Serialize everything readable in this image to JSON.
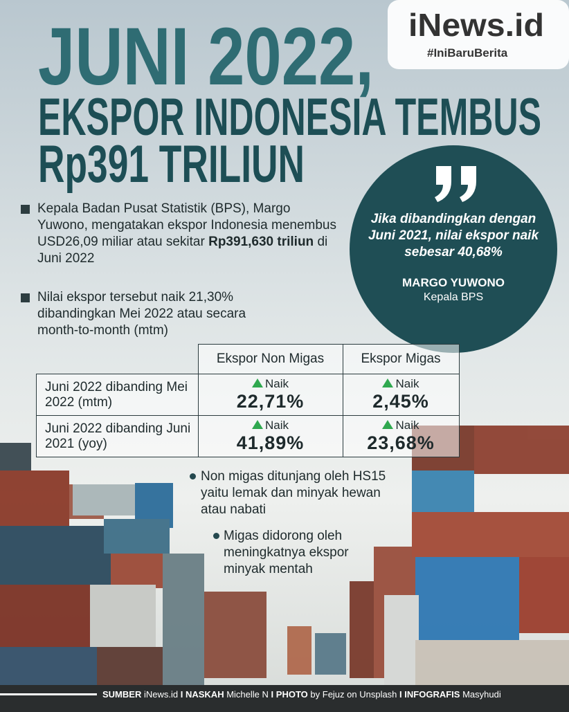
{
  "logo": {
    "name": "iNews.id",
    "tagline": "#IniBaruBerita"
  },
  "title": {
    "line1": "JUNI 2022,",
    "line2": "EKSPOR INDONESIA TEMBUS",
    "line3": "Rp391 TRILIUN"
  },
  "bullets": [
    {
      "text": "Kepala Badan Pusat Statistik (BPS), Margo Yuwono, mengatakan ekspor Indonesia menembus USD26,09 miliar atau sekitar",
      "bold": "Rp391,630 triliun",
      "after": "di Juni 2022"
    },
    {
      "text": "Nilai ekspor tersebut naik 21,30% dibandingkan Mei 2022 atau secara month-to-month (mtm)"
    }
  ],
  "quote": {
    "text": "Jika dibandingkan dengan Juni 2021, nilai ekspor naik sebesar 40,68%",
    "name": "MARGO YUWONO",
    "role": "Kepala BPS"
  },
  "table": {
    "headers": [
      "Ekspor Non Migas",
      "Ekspor Migas"
    ],
    "rows": [
      {
        "label": "Juni 2022 dibanding Mei 2022 (mtm)",
        "cells": [
          {
            "status": "Naik",
            "value": "22,71%"
          },
          {
            "status": "Naik",
            "value": "2,45%"
          }
        ]
      },
      {
        "label": "Juni 2022 dibanding Juni 2021 (yoy)",
        "cells": [
          {
            "status": "Naik",
            "value": "41,89%"
          },
          {
            "status": "Naik",
            "value": "23,68%"
          }
        ]
      }
    ]
  },
  "notes": [
    "Non migas ditunjang oleh HS15 yaitu lemak dan minyak hewan atau nabati",
    "Migas didorong oleh meningkatnya ekspor minyak mentah"
  ],
  "footer": {
    "separator": "I",
    "items": [
      {
        "label": "SUMBER",
        "value": "iNews.id"
      },
      {
        "label": "NASKAH",
        "value": "Michelle N"
      },
      {
        "label": "PHOTO",
        "value": "by Fejuz on Unsplash"
      },
      {
        "label": "INFOGRAFIS",
        "value": "Masyhudi"
      }
    ]
  }
}
